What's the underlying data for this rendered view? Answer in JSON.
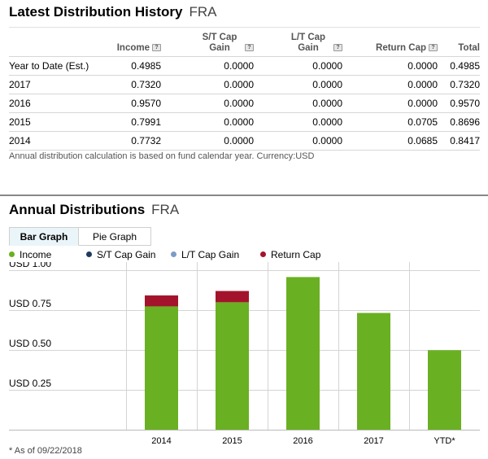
{
  "history": {
    "title": "Latest Distribution History",
    "ticker": "FRA",
    "columns": [
      "",
      "Income",
      "S/T Cap Gain",
      "L/T Cap Gain",
      "Return Cap",
      "Total"
    ],
    "help_glyph": "?",
    "rows": [
      {
        "label": "Year to Date (Est.)",
        "income": "0.4985",
        "st": "0.0000",
        "lt": "0.0000",
        "rc": "0.0000",
        "total": "0.4985"
      },
      {
        "label": "2017",
        "income": "0.7320",
        "st": "0.0000",
        "lt": "0.0000",
        "rc": "0.0000",
        "total": "0.7320"
      },
      {
        "label": "2016",
        "income": "0.9570",
        "st": "0.0000",
        "lt": "0.0000",
        "rc": "0.0000",
        "total": "0.9570"
      },
      {
        "label": "2015",
        "income": "0.7991",
        "st": "0.0000",
        "lt": "0.0000",
        "rc": "0.0705",
        "total": "0.8696"
      },
      {
        "label": "2014",
        "income": "0.7732",
        "st": "0.0000",
        "lt": "0.0000",
        "rc": "0.0685",
        "total": "0.8417"
      }
    ],
    "note": "Annual distribution calculation is based on fund calendar year. Currency:USD"
  },
  "annual": {
    "title": "Annual Distributions",
    "ticker": "FRA",
    "tabs": [
      "Bar Graph",
      "Pie Graph"
    ],
    "active_tab": "Bar Graph",
    "footnote": "* As of 09/22/2018"
  },
  "colors": {
    "income": "#6ab023",
    "st_cap_gain": "#1f3a5f",
    "lt_cap_gain": "#7b9cc6",
    "return_cap": "#a3142c",
    "grid": "#d4d4d4"
  },
  "chart_data": {
    "type": "bar",
    "stacked": true,
    "categories": [
      "2014",
      "2015",
      "2016",
      "2017",
      "YTD*"
    ],
    "series": [
      {
        "name": "Income",
        "values": [
          0.7732,
          0.7991,
          0.957,
          0.732,
          0.4985
        ]
      },
      {
        "name": "S/T Cap Gain",
        "values": [
          0,
          0,
          0,
          0,
          0
        ]
      },
      {
        "name": "L/T Cap Gain",
        "values": [
          0,
          0,
          0,
          0,
          0
        ]
      },
      {
        "name": "Return Cap",
        "values": [
          0.0685,
          0.0705,
          0,
          0,
          0
        ]
      }
    ],
    "ylim": [
      0,
      1.0
    ],
    "yticks": [
      {
        "value": 1.0,
        "label": "USD 1.00"
      },
      {
        "value": 0.75,
        "label": "USD 0.75"
      },
      {
        "value": 0.5,
        "label": "USD 0.50"
      },
      {
        "value": 0.25,
        "label": "USD 0.25"
      }
    ],
    "grid": true,
    "legend_position": "top-left"
  }
}
